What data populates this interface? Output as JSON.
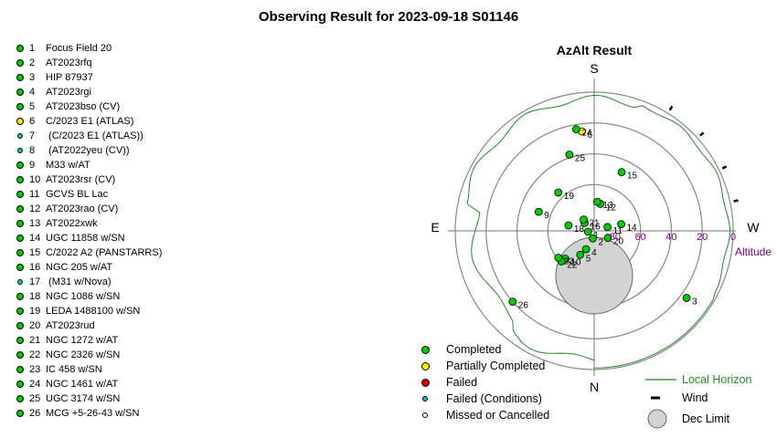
{
  "title": "Observing Result for 2023-09-18 S01146",
  "colors": {
    "completed": "#00cc00",
    "partial": "#ffee00",
    "failed": "#dd0000",
    "failed_conditions": "#00cccc",
    "missed": "#ffffff",
    "horizon": "#228b22",
    "altitude_text": "#800080"
  },
  "targets": [
    {
      "num": "1",
      "name": "Focus Field 20",
      "status": "completed"
    },
    {
      "num": "2",
      "name": "AT2023rfq",
      "status": "completed"
    },
    {
      "num": "3",
      "name": "HIP 87937",
      "status": "completed"
    },
    {
      "num": "4",
      "name": "AT2023rgi",
      "status": "completed"
    },
    {
      "num": "5",
      "name": "AT2023bso (CV)",
      "status": "completed"
    },
    {
      "num": "6",
      "name": "C/2023 E1 (ATLAS)",
      "status": "partial"
    },
    {
      "num": "7",
      "name": " (C/2023 E1 (ATLAS))",
      "status": "failed_conditions"
    },
    {
      "num": "8",
      "name": " (AT2022yeu (CV))",
      "status": "failed_conditions"
    },
    {
      "num": "9",
      "name": "M33 w/AT",
      "status": "completed"
    },
    {
      "num": "10",
      "name": "AT2023rsr (CV)",
      "status": "completed"
    },
    {
      "num": "11",
      "name": "GCVS BL Lac",
      "status": "completed"
    },
    {
      "num": "12",
      "name": "AT2023rao (CV)",
      "status": "completed"
    },
    {
      "num": "13",
      "name": "AT2022xwk",
      "status": "completed"
    },
    {
      "num": "14",
      "name": "UGC 11858 w/SN",
      "status": "completed"
    },
    {
      "num": "15",
      "name": "C/2022 A2 (PANSTARRS)",
      "status": "completed"
    },
    {
      "num": "16",
      "name": "NGC 205 w/AT",
      "status": "completed"
    },
    {
      "num": "17",
      "name": " (M31 w/Nova)",
      "status": "failed_conditions"
    },
    {
      "num": "18",
      "name": "NGC 1086 w/SN",
      "status": "completed"
    },
    {
      "num": "19",
      "name": "LEDA 1488100 w/SN",
      "status": "completed"
    },
    {
      "num": "20",
      "name": "AT2023rud",
      "status": "completed"
    },
    {
      "num": "21",
      "name": "NGC 1272 w/AT",
      "status": "completed"
    },
    {
      "num": "22",
      "name": "NGC 2326 w/SN",
      "status": "completed"
    },
    {
      "num": "23",
      "name": "IC 458 w/SN",
      "status": "completed"
    },
    {
      "num": "24",
      "name": "NGC 1461 w/AT",
      "status": "completed"
    },
    {
      "num": "25",
      "name": "UGC 3174 w/SN",
      "status": "completed"
    },
    {
      "num": "26",
      "name": "MCG +5-26-43 w/SN",
      "status": "completed"
    }
  ],
  "chart_data": {
    "type": "scatter",
    "title": "AzAlt Result",
    "directions": {
      "n": "N",
      "s": "S",
      "e": "E",
      "w": "W"
    },
    "altitude_label": "Altitude",
    "altitude_ticks": [
      "80",
      "60",
      "40",
      "20",
      "0"
    ],
    "points": [
      {
        "label": "1",
        "az": 82,
        "alt": 86,
        "status": "completed"
      },
      {
        "label": "2",
        "az": 10,
        "alt": 85,
        "status": "completed"
      },
      {
        "label": "3",
        "az": 306,
        "alt": 16,
        "status": "completed"
      },
      {
        "label": "4",
        "az": 24,
        "alt": 77,
        "status": "completed"
      },
      {
        "label": "5",
        "az": 30,
        "alt": 72,
        "status": "completed"
      },
      {
        "label": "6",
        "az": 173,
        "alt": 25,
        "status": "partial"
      },
      {
        "label": "9",
        "az": 109,
        "alt": 52,
        "status": "completed"
      },
      {
        "label": "10",
        "az": 46,
        "alt": 64,
        "status": "completed"
      },
      {
        "label": "11",
        "az": 254,
        "alt": 81,
        "status": "completed"
      },
      {
        "label": "12",
        "az": 193,
        "alt": 72,
        "status": "completed"
      },
      {
        "label": "13",
        "az": 186,
        "alt": 71,
        "status": "completed"
      },
      {
        "label": "14",
        "az": 256,
        "alt": 72,
        "status": "completed"
      },
      {
        "label": "15",
        "az": 205,
        "alt": 48,
        "status": "completed"
      },
      {
        "label": "16",
        "az": 130,
        "alt": 82,
        "status": "completed"
      },
      {
        "label": "18",
        "az": 102,
        "alt": 73,
        "status": "completed"
      },
      {
        "label": "19",
        "az": 137,
        "alt": 56,
        "status": "completed"
      },
      {
        "label": "20",
        "az": 297,
        "alt": 80,
        "status": "completed"
      },
      {
        "label": "21",
        "az": 137,
        "alt": 80,
        "status": "completed"
      },
      {
        "label": "22",
        "az": 47,
        "alt": 61,
        "status": "completed"
      },
      {
        "label": "23",
        "az": 53,
        "alt": 61,
        "status": "completed"
      },
      {
        "label": "24",
        "az": 170,
        "alt": 23,
        "status": "completed"
      },
      {
        "label": "25",
        "az": 162,
        "alt": 38,
        "status": "completed"
      },
      {
        "label": "26",
        "az": 49,
        "alt": 20,
        "status": "completed"
      }
    ]
  },
  "legend": {
    "completed": "Completed",
    "partial": "Partially Completed",
    "failed": "Failed",
    "failed_conditions": "Failed (Conditions)",
    "missed": "Missed or Cancelled",
    "local_horizon": "Local Horizon",
    "wind": "Wind",
    "dec_limit": "Dec Limit"
  }
}
